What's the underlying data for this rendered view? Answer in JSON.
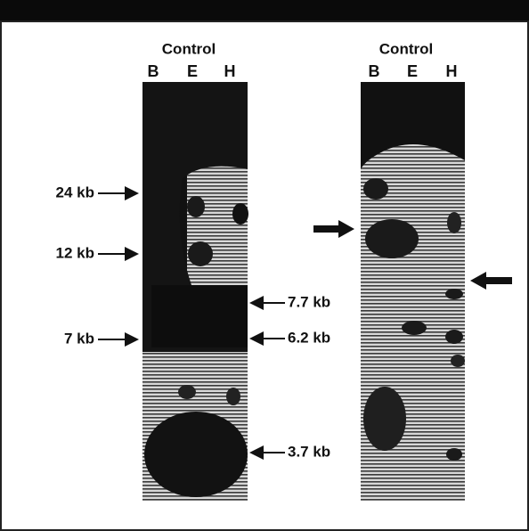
{
  "panels": [
    {
      "label": "Control",
      "lanes": [
        "B",
        "E",
        "H"
      ]
    },
    {
      "label": "Control",
      "lanes": [
        "B",
        "E",
        "H"
      ]
    }
  ],
  "markers_left": [
    "24 kb",
    "12 kb",
    "7 kb"
  ],
  "markers_right": [
    "7.7 kb",
    "6.2 kb",
    "3.7 kb"
  ]
}
